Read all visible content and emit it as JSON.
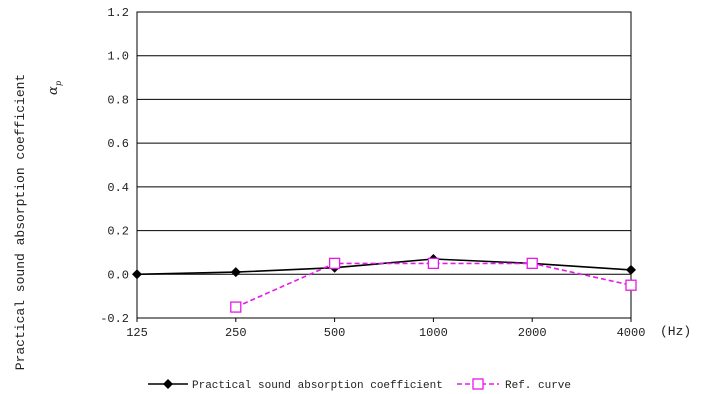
{
  "chart_data": {
    "type": "line",
    "ylabel": "Practical sound absorption coefficient",
    "ylabel_symbol": "α",
    "ylabel_symbol_sub": "p",
    "x_unit": "(Hz)",
    "categories": [
      "125",
      "250",
      "500",
      "1000",
      "2000",
      "4000"
    ],
    "yticks": [
      "-0.2",
      "0.0",
      "0.2",
      "0.4",
      "0.6",
      "0.8",
      "1.0",
      "1.2"
    ],
    "ylim": [
      -0.2,
      1.2
    ],
    "grid": "horizontal",
    "legend_position": "bottom",
    "series": [
      {
        "name": "Practical sound absorption coefficient",
        "values": [
          0.0,
          0.01,
          0.03,
          0.07,
          0.05,
          0.02
        ],
        "color": "#000000",
        "marker": "filled-diamond",
        "line": "solid"
      },
      {
        "name": "Ref. curve",
        "values": [
          null,
          -0.15,
          0.05,
          0.05,
          0.05,
          -0.05
        ],
        "color": "#e619e6",
        "marker": "hollow-square",
        "line": "dashed"
      }
    ]
  }
}
